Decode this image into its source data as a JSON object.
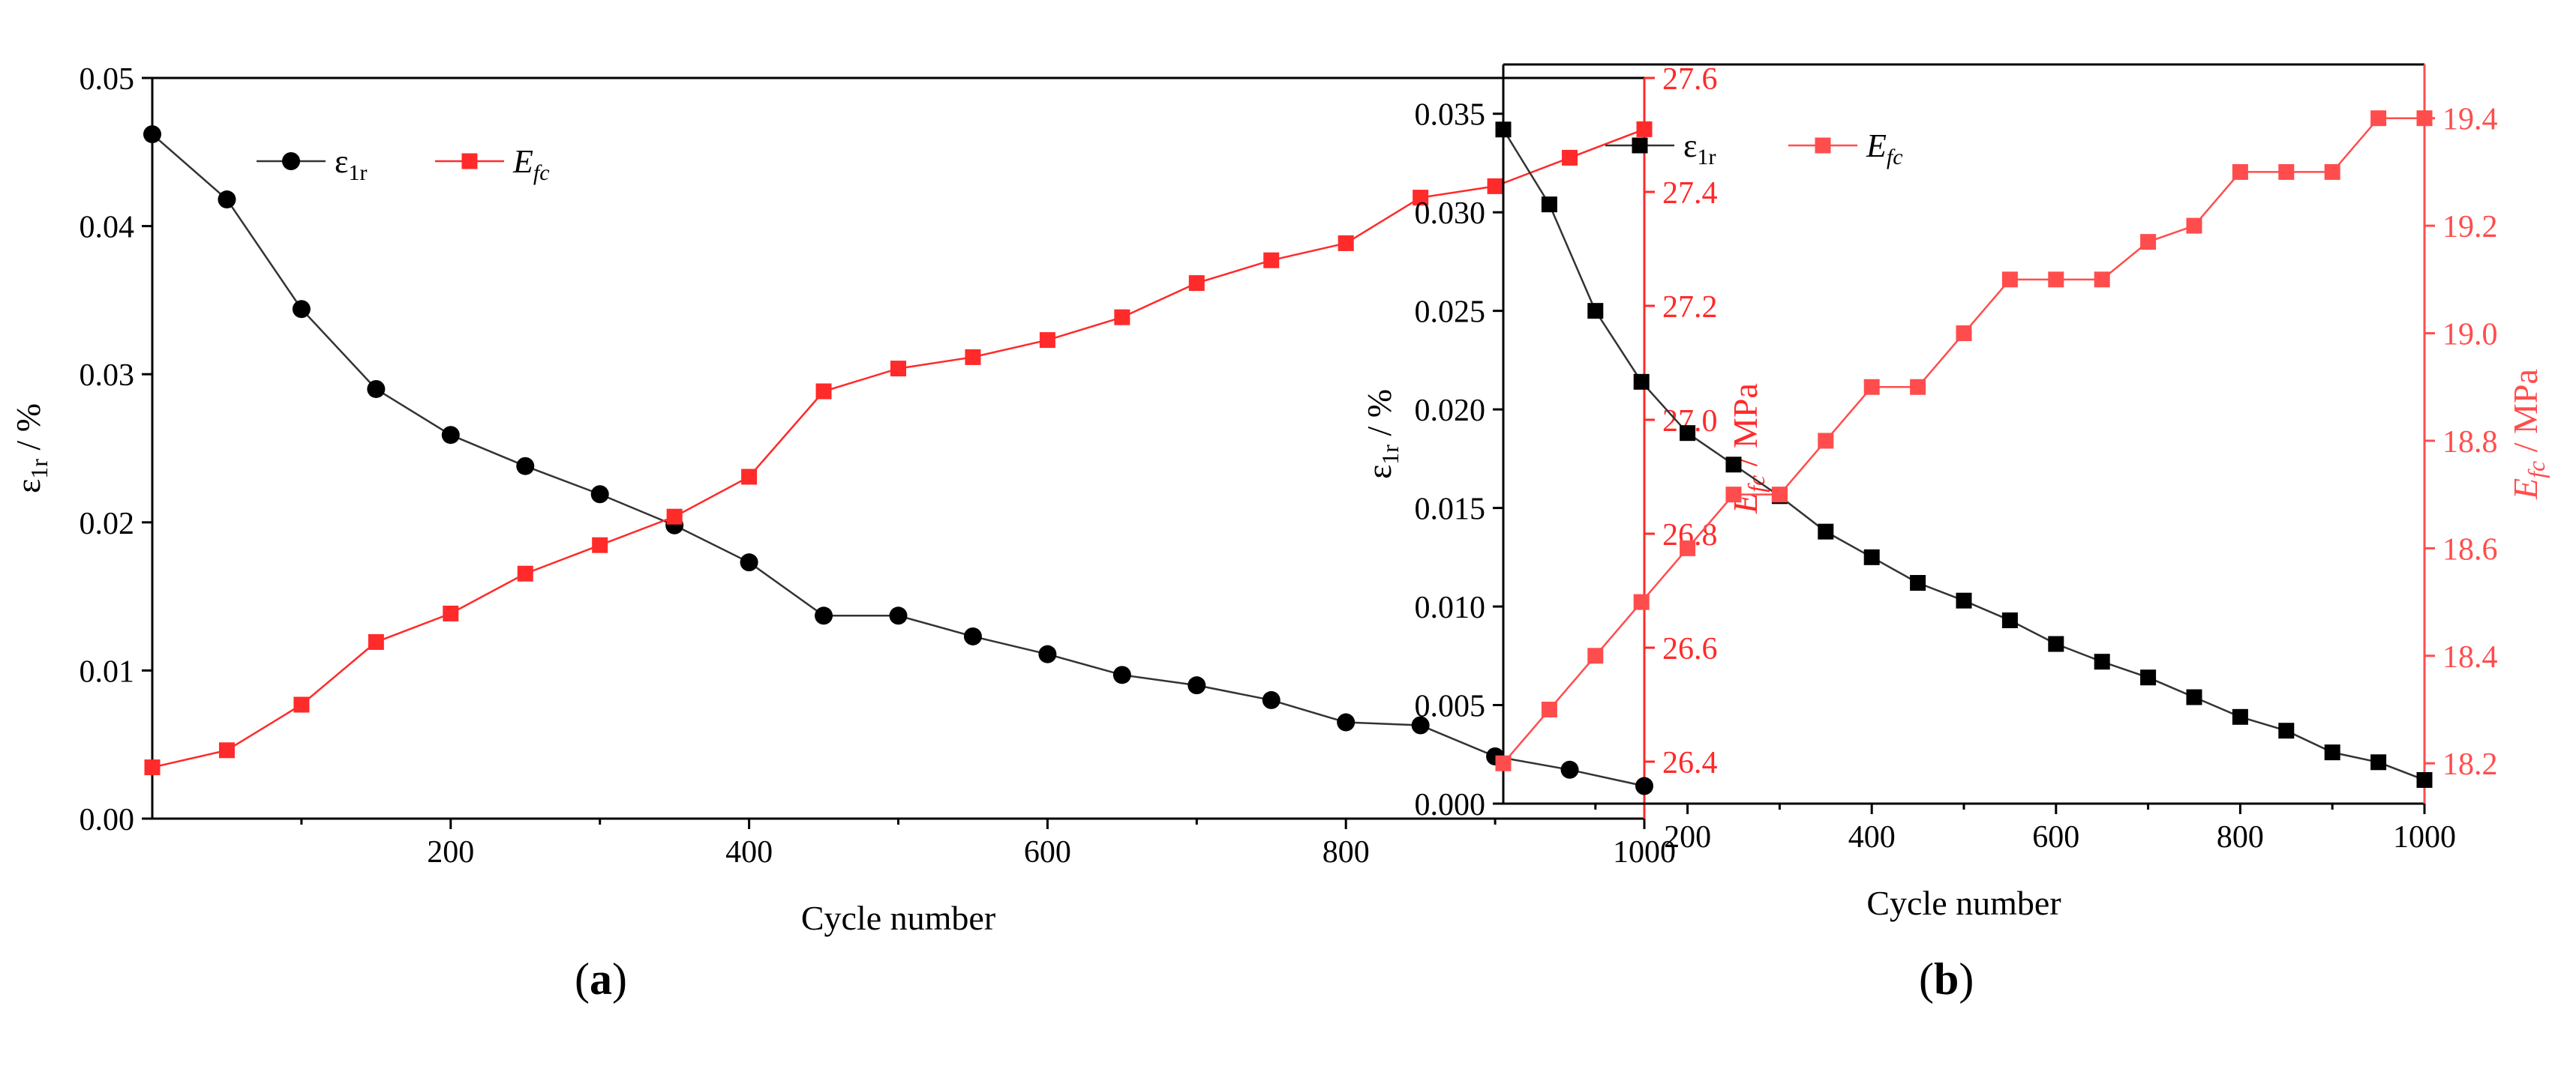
{
  "chart_data": [
    {
      "type": "line",
      "panel_label": "a",
      "xlabel": "Cycle number",
      "ylabel_left": {
        "symbol": "ε",
        "sub": "1r",
        "unit": " / %"
      },
      "ylabel_right": {
        "symbol": "E",
        "sub": "fc",
        "unit": " / MPa"
      },
      "xlim": [
        0,
        1000
      ],
      "ylim_left": [
        0,
        0.05
      ],
      "ylim_right": [
        26.3,
        27.6
      ],
      "x_ticks": [
        200,
        400,
        600,
        800,
        1000
      ],
      "y_left_ticks": [
        "0.00",
        "0.01",
        "0.02",
        "0.03",
        "0.04",
        "0.05"
      ],
      "y_right_ticks": [
        "26.4",
        "26.6",
        "26.8",
        "27.0",
        "27.2",
        "27.4",
        "27.6"
      ],
      "legend_position": "top-left",
      "x": [
        0,
        50,
        100,
        150,
        200,
        250,
        300,
        350,
        400,
        450,
        500,
        550,
        600,
        650,
        700,
        750,
        800,
        850,
        900,
        950,
        1000
      ],
      "series": [
        {
          "name": "ε1r",
          "legend_symbol": "ε",
          "legend_sub": "1r",
          "axis": "left",
          "marker": "circle",
          "color": "#000000",
          "values": [
            0.0462,
            0.0418,
            0.0344,
            0.029,
            0.0259,
            0.0238,
            0.0219,
            0.0198,
            0.0173,
            0.0137,
            0.0137,
            0.0123,
            0.0111,
            0.0097,
            0.009,
            0.008,
            0.0065,
            0.0063,
            0.0042,
            0.0033,
            0.0022
          ]
        },
        {
          "name": "Efc",
          "legend_symbol": "E",
          "legend_sub": "fc",
          "axis": "right",
          "marker": "square",
          "color": "#ff2a2a",
          "values": [
            26.39,
            26.42,
            26.5,
            26.61,
            26.66,
            26.73,
            26.78,
            26.83,
            26.9,
            27.05,
            27.09,
            27.11,
            27.14,
            27.18,
            27.24,
            27.28,
            27.31,
            27.39,
            27.41,
            27.46,
            27.51
          ]
        }
      ]
    },
    {
      "type": "line",
      "panel_label": "b",
      "xlabel": "Cycle number",
      "ylabel_left": {
        "symbol": "ε",
        "sub": "1r",
        "unit": " / %"
      },
      "ylabel_right": {
        "symbol": "E",
        "sub": "fc",
        "unit": " / MPa"
      },
      "xlim": [
        0,
        1000
      ],
      "ylim_left": [
        0,
        0.0375
      ],
      "ylim_right": [
        18.125,
        19.5
      ],
      "x_ticks": [
        200,
        400,
        600,
        800,
        1000
      ],
      "y_left_ticks": [
        "0.000",
        "0.005",
        "0.010",
        "0.015",
        "0.020",
        "0.025",
        "0.030",
        "0.035"
      ],
      "y_right_ticks": [
        "18.2",
        "18.4",
        "18.6",
        "18.8",
        "19.0",
        "19.2",
        "19.4"
      ],
      "legend_position": "top-left",
      "x": [
        0,
        50,
        100,
        150,
        200,
        250,
        300,
        350,
        400,
        450,
        500,
        550,
        600,
        650,
        700,
        750,
        800,
        850,
        900,
        950,
        1000
      ],
      "series": [
        {
          "name": "ε1r",
          "legend_symbol": "ε",
          "legend_sub": "1r",
          "axis": "left",
          "marker": "square",
          "color": "#000000",
          "values": [
            0.0342,
            0.0304,
            0.025,
            0.0214,
            0.0188,
            0.0172,
            0.0156,
            0.0138,
            0.0125,
            0.0112,
            0.0103,
            0.0093,
            0.0081,
            0.0072,
            0.0064,
            0.0054,
            0.0044,
            0.0037,
            0.0026,
            0.0021,
            0.0012
          ]
        },
        {
          "name": "Efc",
          "legend_symbol": "E",
          "legend_sub": "fc",
          "axis": "right",
          "marker": "square",
          "color": "#ff4d4d",
          "values": [
            18.2,
            18.3,
            18.4,
            18.5,
            18.6,
            18.7,
            18.7,
            18.8,
            18.9,
            18.9,
            19.0,
            19.1,
            19.1,
            19.1,
            19.17,
            19.2,
            19.3,
            19.3,
            19.3,
            19.4,
            19.4
          ]
        }
      ]
    }
  ]
}
